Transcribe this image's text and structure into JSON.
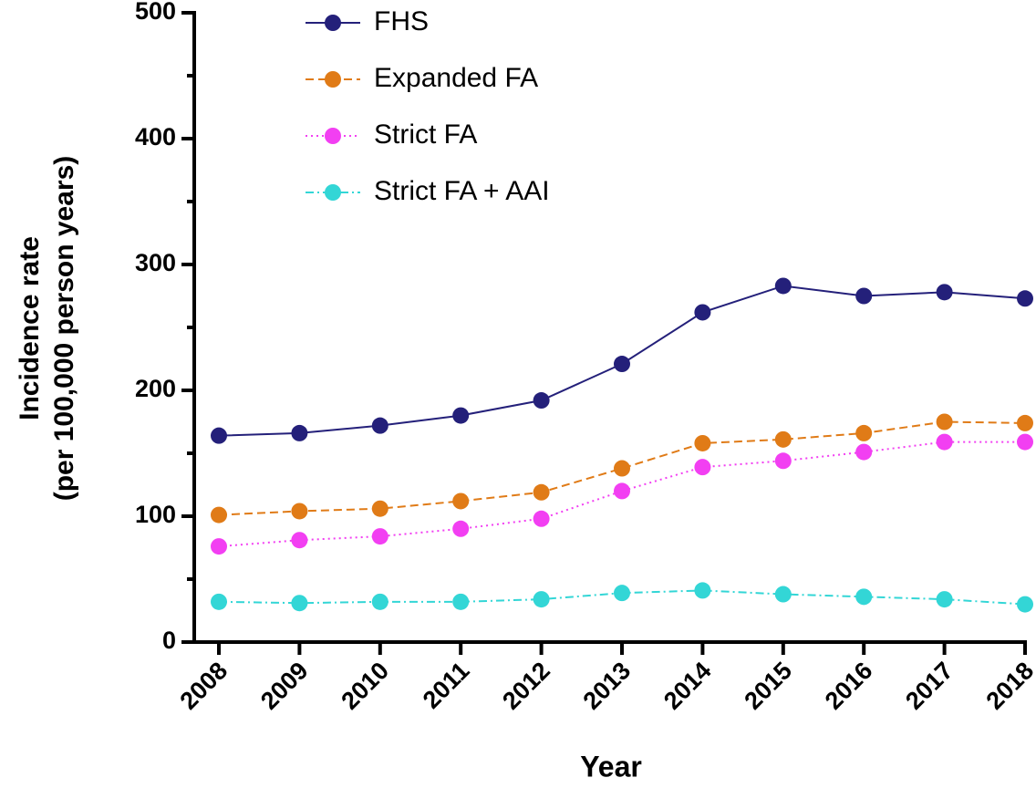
{
  "chart_data": {
    "type": "line",
    "x_label": "Year",
    "y_label": [
      "Incidence rate",
      "(per 100,000 person years)"
    ],
    "categories": [
      "2008",
      "2009",
      "2010",
      "2011",
      "2012",
      "2013",
      "2014",
      "2015",
      "2016",
      "2017",
      "2018"
    ],
    "series": [
      {
        "name": "FHS",
        "color": "#24207a",
        "style": "solid",
        "values": [
          164,
          166,
          172,
          180,
          192,
          221,
          262,
          283,
          275,
          278,
          273
        ]
      },
      {
        "name": "Expanded FA",
        "color": "#e07b17",
        "style": "dashed",
        "values": [
          101,
          104,
          106,
          112,
          119,
          138,
          158,
          161,
          166,
          175,
          174
        ]
      },
      {
        "name": "Strict FA",
        "color": "#f23ff2",
        "style": "dotted",
        "values": [
          76,
          81,
          84,
          90,
          98,
          120,
          139,
          144,
          151,
          159,
          159
        ]
      },
      {
        "name": "Strict FA + AAI",
        "color": "#33d6d6",
        "style": "dashdot",
        "values": [
          32,
          31,
          32,
          32,
          34,
          39,
          41,
          38,
          36,
          34,
          30
        ]
      }
    ],
    "ylim": [
      0,
      500
    ],
    "yticks": [
      0,
      100,
      200,
      300,
      400,
      500
    ],
    "grid": false
  }
}
